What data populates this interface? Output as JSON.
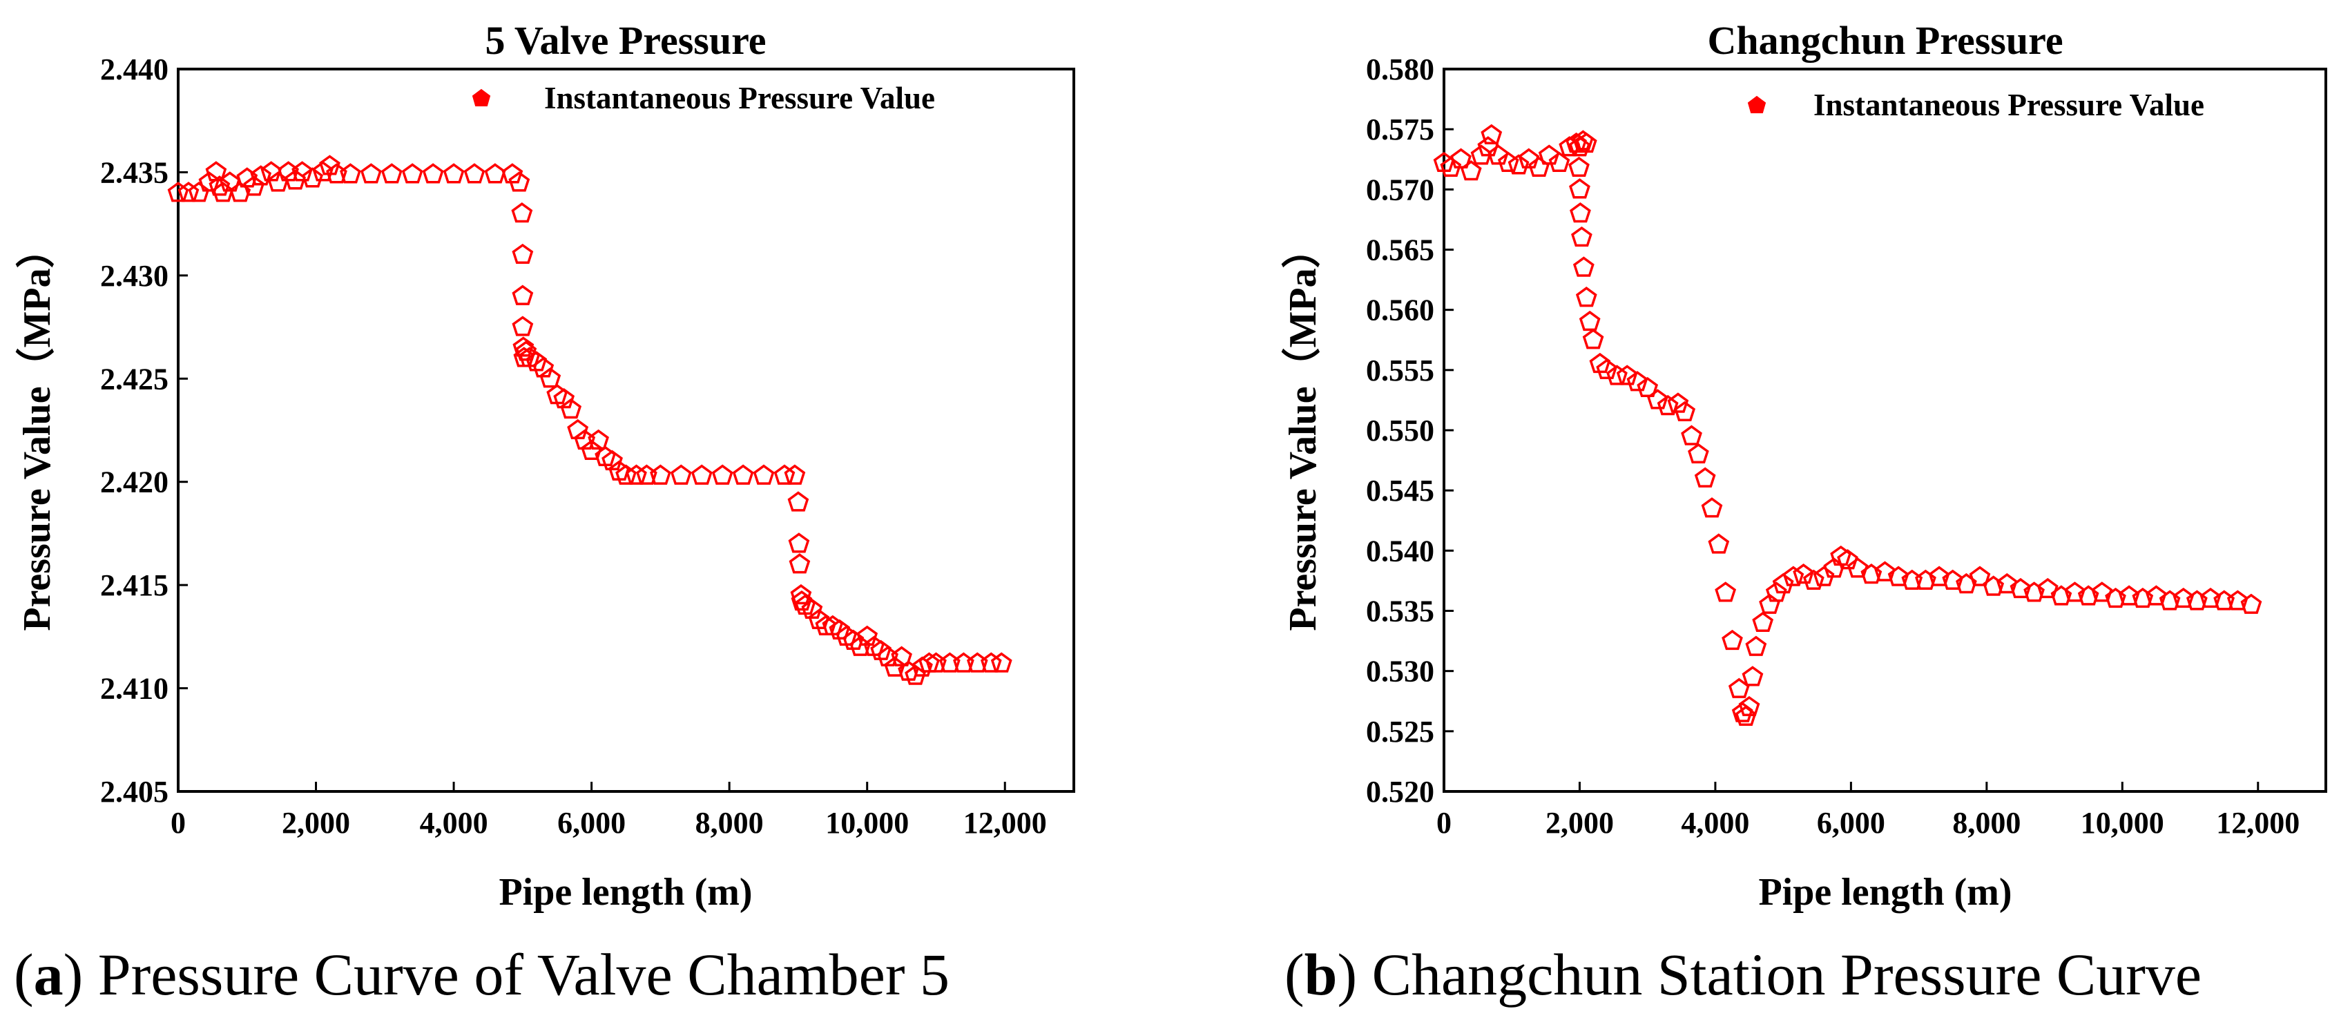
{
  "chart_data": [
    {
      "id": "a",
      "type": "scatter",
      "title": "5 Valve Pressure",
      "xlabel": "Pipe length (m)",
      "ylabel": "Pressure Value（MPa）",
      "xlim": [
        0,
        13000
      ],
      "ylim": [
        2.405,
        2.44
      ],
      "xticks": [
        0,
        2000,
        4000,
        6000,
        8000,
        10000,
        12000
      ],
      "xtick_labels": [
        "0",
        "2,000",
        "4,000",
        "6,000",
        "8,000",
        "10,000",
        "12,000"
      ],
      "yticks": [
        2.405,
        2.41,
        2.415,
        2.42,
        2.425,
        2.43,
        2.435,
        2.44
      ],
      "ytick_labels": [
        "2.405",
        "2.410",
        "2.415",
        "2.420",
        "2.425",
        "2.430",
        "2.435",
        "2.440"
      ],
      "legend": {
        "label": "Instantaneous Pressure Value",
        "position": "top-right"
      },
      "marker_color": "#ff0000",
      "series": [
        {
          "name": "Instantaneous Pressure Value",
          "x": [
            0,
            150,
            300,
            450,
            550,
            600,
            650,
            750,
            900,
            1000,
            1100,
            1200,
            1350,
            1450,
            1600,
            1700,
            1800,
            1950,
            2100,
            2200,
            2300,
            2500,
            2800,
            3100,
            3400,
            3700,
            4000,
            4300,
            4600,
            4850,
            4950,
            4990,
            5000,
            5000,
            5000,
            5010,
            5020,
            5050,
            5100,
            5200,
            5300,
            5400,
            5500,
            5600,
            5700,
            5800,
            5900,
            6000,
            6100,
            6200,
            6300,
            6400,
            6500,
            6650,
            6800,
            7000,
            7300,
            7600,
            7900,
            8200,
            8500,
            8800,
            8950,
            9000,
            9010,
            9020,
            9040,
            9050,
            9100,
            9200,
            9300,
            9400,
            9500,
            9600,
            9700,
            9800,
            9900,
            10000,
            10100,
            10200,
            10300,
            10400,
            10500,
            10600,
            10700,
            10800,
            10900,
            11000,
            11200,
            11400,
            11600,
            11800,
            11950
          ],
          "y": [
            2.434,
            2.434,
            2.434,
            2.4345,
            2.435,
            2.4343,
            2.434,
            2.4345,
            2.434,
            2.4347,
            2.4343,
            2.4348,
            2.435,
            2.4345,
            2.435,
            2.4346,
            2.435,
            2.4347,
            2.435,
            2.4353,
            2.4349,
            2.4349,
            2.4349,
            2.4349,
            2.4349,
            2.4349,
            2.4349,
            2.4349,
            2.4349,
            2.4349,
            2.4345,
            2.433,
            2.431,
            2.429,
            2.4275,
            2.4265,
            2.426,
            2.4263,
            2.426,
            2.4258,
            2.4255,
            2.425,
            2.4242,
            2.424,
            2.4235,
            2.4225,
            2.422,
            2.4215,
            2.422,
            2.4212,
            2.421,
            2.4205,
            2.4203,
            2.4203,
            2.4203,
            2.4203,
            2.4203,
            2.4203,
            2.4203,
            2.4203,
            2.4203,
            2.4203,
            2.4203,
            2.419,
            2.417,
            2.416,
            2.4145,
            2.4142,
            2.414,
            2.4138,
            2.4133,
            2.413,
            2.413,
            2.4128,
            2.4125,
            2.4123,
            2.412,
            2.4125,
            2.412,
            2.4118,
            2.4115,
            2.411,
            2.4115,
            2.4108,
            2.4106,
            2.411,
            2.4112,
            2.4112,
            2.4112,
            2.4112,
            2.4112,
            2.4112,
            2.4112
          ]
        }
      ]
    },
    {
      "id": "b",
      "type": "scatter",
      "title": "Changchun Pressure",
      "xlabel": "Pipe length (m)",
      "ylabel": "Pressure Value（MPa）",
      "xlim": [
        0,
        13000
      ],
      "ylim": [
        0.52,
        0.58
      ],
      "xticks": [
        0,
        2000,
        4000,
        6000,
        8000,
        10000,
        12000
      ],
      "xtick_labels": [
        "0",
        "2,000",
        "4,000",
        "6,000",
        "8,000",
        "10,000",
        "12,000"
      ],
      "yticks": [
        0.52,
        0.525,
        0.53,
        0.535,
        0.54,
        0.545,
        0.55,
        0.555,
        0.56,
        0.565,
        0.57,
        0.575,
        0.58
      ],
      "ytick_labels": [
        "0.520",
        "0.525",
        "0.530",
        "0.535",
        "0.540",
        "0.545",
        "0.550",
        "0.555",
        "0.560",
        "0.565",
        "0.570",
        "0.575",
        "0.580"
      ],
      "legend": {
        "label": "Instantaneous Pressure Value",
        "position": "top-right"
      },
      "marker_color": "#ff0000",
      "series": [
        {
          "name": "Instantaneous Pressure Value",
          "x": [
            0,
            100,
            250,
            400,
            550,
            650,
            700,
            800,
            950,
            1100,
            1250,
            1400,
            1550,
            1700,
            1850,
            1950,
            2000,
            2050,
            2100,
            1990,
            2000,
            2010,
            2030,
            2060,
            2100,
            2150,
            2200,
            2300,
            2400,
            2550,
            2700,
            2850,
            3000,
            3150,
            3300,
            3450,
            3550,
            3650,
            3750,
            3850,
            3950,
            4050,
            4150,
            4250,
            4350,
            4400,
            4450,
            4500,
            4550,
            4600,
            4700,
            4800,
            4900,
            5000,
            5150,
            5300,
            5450,
            5600,
            5750,
            5850,
            5950,
            6100,
            6300,
            6500,
            6700,
            6900,
            7100,
            7300,
            7500,
            7700,
            7900,
            8100,
            8300,
            8500,
            8700,
            8900,
            9100,
            9300,
            9500,
            9700,
            9900,
            10100,
            10300,
            10500,
            10700,
            10900,
            11100,
            11300,
            11500,
            11700,
            11900
          ],
          "y": [
            0.5722,
            0.5718,
            0.5725,
            0.5715,
            0.5728,
            0.5735,
            0.5745,
            0.5728,
            0.5722,
            0.572,
            0.5725,
            0.5718,
            0.5728,
            0.5722,
            0.5735,
            0.5738,
            0.5735,
            0.574,
            0.5738,
            0.5718,
            0.57,
            0.568,
            0.566,
            0.5635,
            0.561,
            0.559,
            0.5575,
            0.5555,
            0.555,
            0.5545,
            0.5545,
            0.554,
            0.5535,
            0.5525,
            0.552,
            0.5522,
            0.5515,
            0.5495,
            0.548,
            0.546,
            0.5435,
            0.5405,
            0.5365,
            0.5325,
            0.5285,
            0.5265,
            0.5262,
            0.527,
            0.5295,
            0.532,
            0.534,
            0.5355,
            0.5365,
            0.5372,
            0.5378,
            0.538,
            0.5375,
            0.5378,
            0.5385,
            0.5395,
            0.5392,
            0.5385,
            0.538,
            0.5382,
            0.5378,
            0.5375,
            0.5375,
            0.5378,
            0.5375,
            0.5372,
            0.5378,
            0.537,
            0.5372,
            0.5368,
            0.5365,
            0.5368,
            0.5362,
            0.5365,
            0.5362,
            0.5365,
            0.536,
            0.5362,
            0.536,
            0.5362,
            0.5358,
            0.536,
            0.5358,
            0.536,
            0.5358,
            0.5358,
            0.5355
          ]
        }
      ]
    }
  ],
  "captions": [
    {
      "letter": "a",
      "text": " Pressure Curve of Valve Chamber 5"
    },
    {
      "letter": "b",
      "text": " Changchun Station Pressure Curve"
    }
  ]
}
